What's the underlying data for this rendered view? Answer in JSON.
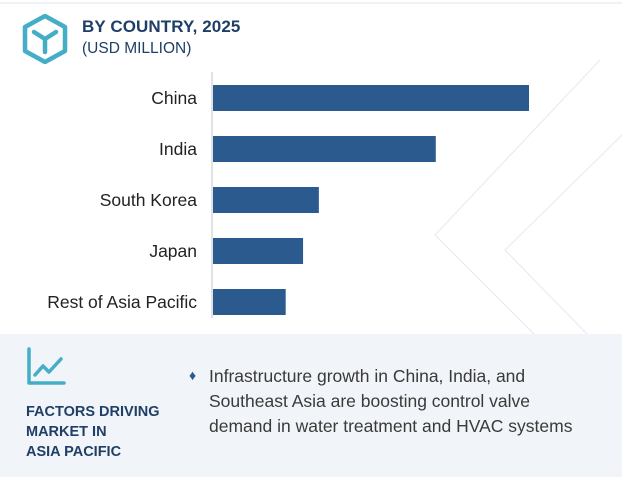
{
  "header": {
    "title": "BY COUNTRY, 2025",
    "subtitle": "(USD MILLION)"
  },
  "colors": {
    "bar": "#2b5a8f",
    "text_dark": "#1f3f66",
    "panel": "#f1f4f8",
    "logo": "#45aec7"
  },
  "icons": {
    "logo": "cube-logo-icon",
    "trend": "trend-chart-icon",
    "bullet": "diamond-bullet-icon"
  },
  "chart_data": {
    "type": "bar",
    "orientation": "horizontal",
    "title": "BY COUNTRY, 2025",
    "subtitle": "(USD MILLION)",
    "categories": [
      "China",
      "India",
      "South Korea",
      "Japan",
      "Rest of Asia Pacific"
    ],
    "values": [
      100,
      70.5,
      33.5,
      28.5,
      23
    ],
    "xlim": [
      0,
      100
    ],
    "value_axis_labels": false,
    "grid": false
  },
  "factors": {
    "title_lines": [
      "FACTORS DRIVING",
      "MARKET IN",
      "ASIA PACIFIC"
    ],
    "bullets": [
      {
        "lines": [
          "Infrastructure growth in China, India, and",
          "Southeast Asia are boosting control valve",
          "demand in water treatment and HVAC systems"
        ]
      }
    ]
  }
}
